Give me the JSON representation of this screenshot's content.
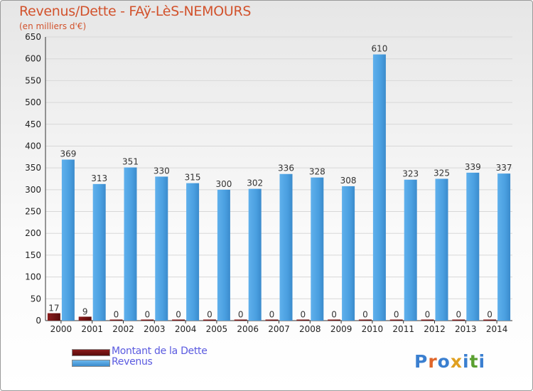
{
  "title": "Revenus/Dette - FAÿ-LèS-NEMOURS",
  "subtitle": "(en milliers d'€)",
  "logo": {
    "text": "Proxiti",
    "name": "proxiti-logo"
  },
  "colors": {
    "debt": "#6b0f0f",
    "revenue": "#4a9fe0",
    "title": "#d2522c",
    "legend_text": "#5a5ae0"
  },
  "chart_data": {
    "type": "bar",
    "categories": [
      "2000",
      "2001",
      "2002",
      "2003",
      "2004",
      "2005",
      "2006",
      "2007",
      "2008",
      "2009",
      "2010",
      "2011",
      "2012",
      "2013",
      "2014"
    ],
    "series": [
      {
        "name": "Montant de la Dette",
        "values": [
          17,
          9,
          0,
          0,
          0,
          0,
          0,
          0,
          0,
          0,
          0,
          0,
          0,
          0,
          0
        ]
      },
      {
        "name": "Revenus",
        "values": [
          369,
          313,
          351,
          330,
          315,
          300,
          302,
          336,
          328,
          308,
          610,
          323,
          325,
          339,
          337
        ]
      }
    ],
    "yticks": [
      0,
      50,
      100,
      150,
      200,
      250,
      300,
      350,
      400,
      450,
      500,
      550,
      600,
      650
    ],
    "ylim": [
      0,
      650
    ],
    "grid": true,
    "legend": "bottom-left"
  }
}
